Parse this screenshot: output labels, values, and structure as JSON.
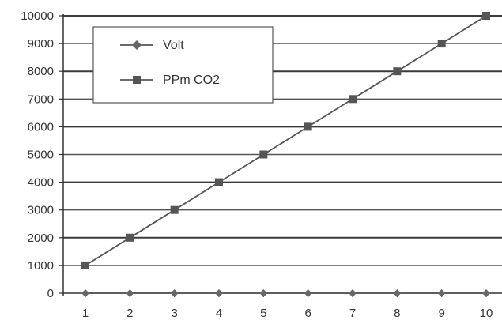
{
  "chart_data": {
    "type": "line",
    "x": [
      1,
      2,
      3,
      4,
      5,
      6,
      7,
      8,
      9,
      10
    ],
    "x_tick_labels": [
      "1",
      "2",
      "3",
      "4",
      "5",
      "6",
      "7",
      "8",
      "9",
      "10"
    ],
    "ylim": [
      0,
      10000
    ],
    "y_tick_labels": [
      "0",
      "1000",
      "2000",
      "3000",
      "4000",
      "5000",
      "6000",
      "7000",
      "8000",
      "9000",
      "10000"
    ],
    "grid": true,
    "legend_position": "top-left",
    "series": [
      {
        "name": "Volt",
        "marker": "diamond",
        "color": "#666666",
        "values": [
          0,
          0,
          0,
          0,
          0,
          0,
          0,
          0,
          0,
          0
        ]
      },
      {
        "name": "PPm CO2",
        "marker": "square",
        "color": "#555555",
        "values": [
          1000,
          2000,
          3000,
          4000,
          5000,
          6000,
          7000,
          8000,
          9000,
          10000
        ]
      }
    ]
  }
}
